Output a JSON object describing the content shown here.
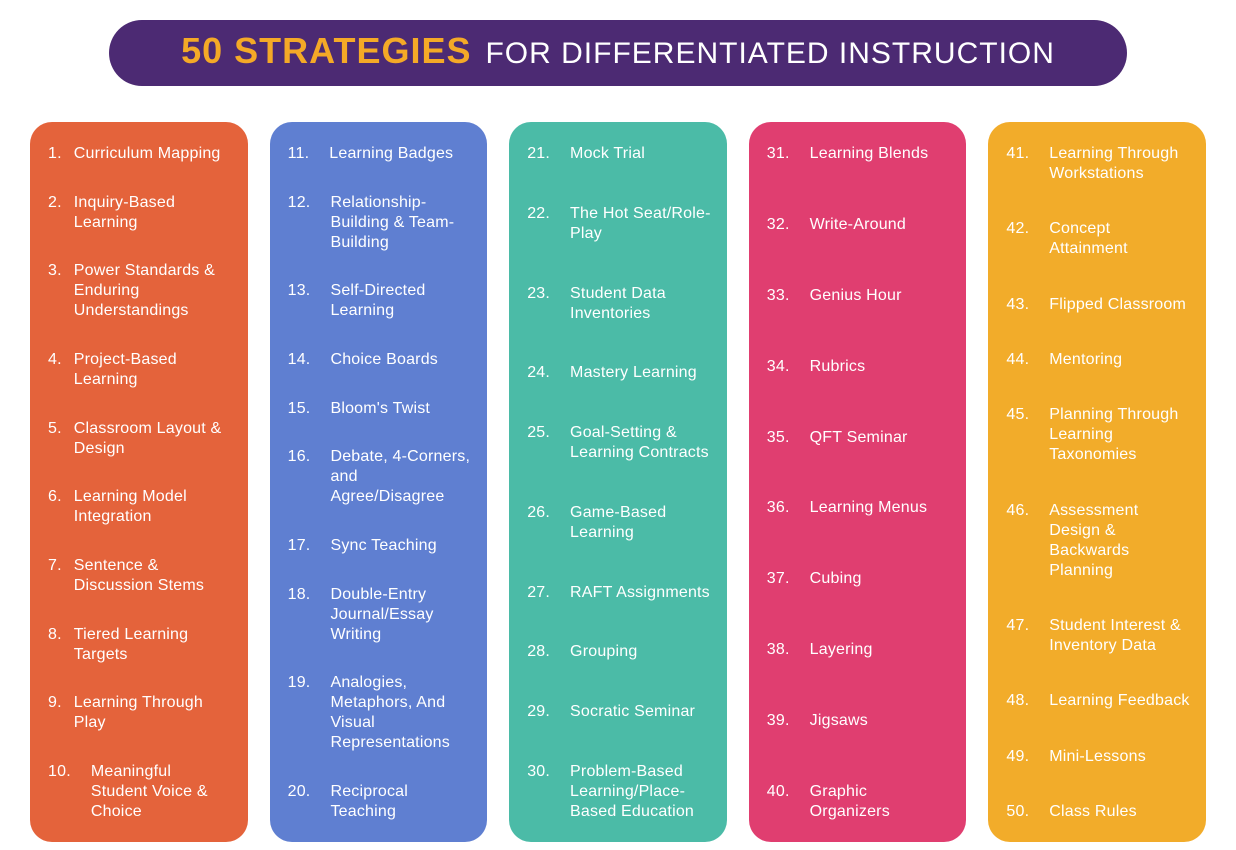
{
  "header": {
    "bg": "#4c2a73",
    "bold_text": "50 STRATEGIES",
    "bold_color": "#f4a927",
    "light_text": "FOR DIFFERENTIATED INSTRUCTION",
    "light_color": "#ffffff"
  },
  "columns": [
    {
      "bg": "#e4633b",
      "start": 1,
      "items": [
        "Curriculum Mapping",
        "Inquiry-Based Learning",
        "Power Standards & Enduring Understandings",
        "Project-Based Learning",
        "Classroom Layout & Design",
        "Learning Model Integration",
        "Sentence & Discussion Stems",
        "Tiered Learning Targets",
        "Learning Through Play",
        "Meaningful Student Voice & Choice"
      ]
    },
    {
      "bg": "#5f7fd1",
      "start": 11,
      "items": [
        "Learning Badges",
        "Relationship-Building & Team-Building",
        "Self-Directed Learning",
        "Choice Boards",
        "Bloom's Twist",
        "Debate, 4-Corners, and Agree/Disagree",
        "Sync Teaching",
        "Double-Entry Journal/Essay Writing",
        "Analogies, Metaphors, And Visual Representations",
        "Reciprocal Teaching"
      ]
    },
    {
      "bg": "#4bbba7",
      "start": 21,
      "items": [
        "Mock Trial",
        "The Hot Seat/Role-Play",
        "Student Data Inventories",
        "Mastery Learning",
        "Goal-Setting & Learning Contracts",
        "Game-Based Learning",
        "RAFT Assignments",
        "Grouping",
        "Socratic Seminar",
        "Problem-Based Learning/Place-Based Education"
      ]
    },
    {
      "bg": "#e03e70",
      "start": 31,
      "items": [
        "Learning Blends",
        "Write-Around",
        "Genius Hour",
        "Rubrics",
        "QFT Seminar",
        "Learning Menus",
        "Cubing",
        "Layering",
        "Jigsaws",
        "Graphic Organizers"
      ]
    },
    {
      "bg": "#f2ac2a",
      "start": 41,
      "items": [
        "Learning Through Workstations",
        "Concept Attainment",
        "Flipped Classroom",
        "Mentoring",
        "Planning Through Learning Taxonomies",
        "Assessment Design & Backwards Planning",
        "Student Interest & Inventory Data",
        "Learning Feedback",
        "Mini-Lessons",
        "Class Rules"
      ]
    }
  ]
}
